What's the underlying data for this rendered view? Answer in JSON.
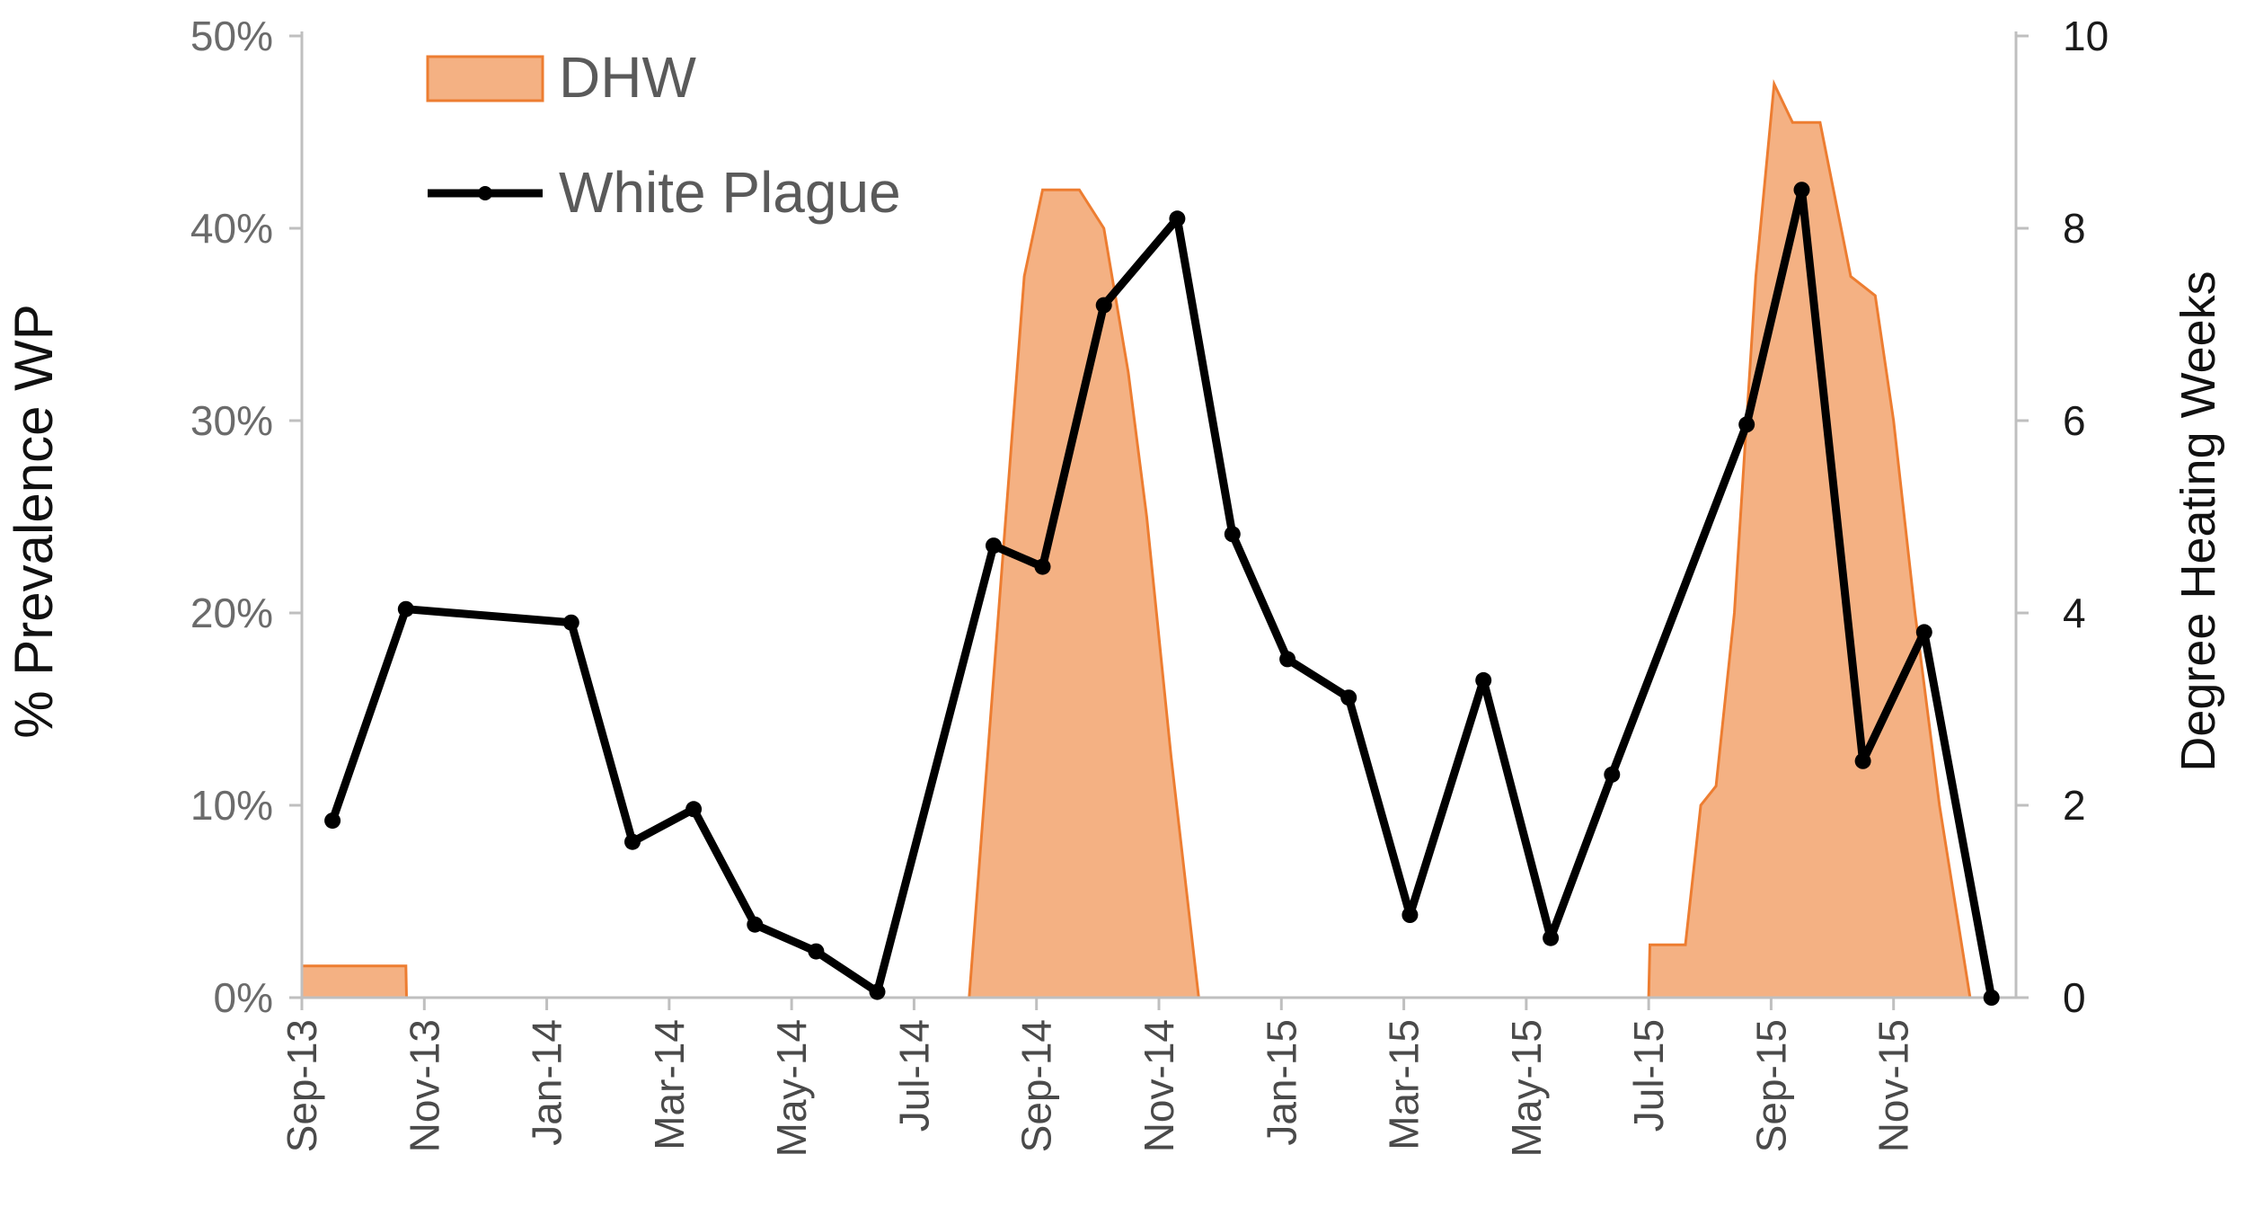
{
  "chart_data": {
    "type": "line",
    "title": "",
    "ylabel": "% Prevalence WP",
    "y2label": "Degree Heating Weeks",
    "xlabel": "",
    "ylim": [
      0,
      50
    ],
    "y2lim": [
      0,
      10
    ],
    "y_ticks": [
      "0%",
      "10%",
      "20%",
      "30%",
      "40%",
      "50%"
    ],
    "y_tick_values": [
      0,
      10,
      20,
      30,
      40,
      50
    ],
    "y2_ticks": [
      "0",
      "2",
      "4",
      "6",
      "8",
      "10"
    ],
    "y2_tick_values": [
      0,
      2,
      4,
      6,
      8,
      10
    ],
    "x_ticks": [
      "Sep-13",
      "Nov-13",
      "Jan-14",
      "Mar-14",
      "May-14",
      "Jul-14",
      "Sep-14",
      "Nov-14",
      "Jan-15",
      "Mar-15",
      "May-15",
      "Jul-15",
      "Sep-15",
      "Nov-15"
    ],
    "x_tick_values": [
      0,
      2,
      4,
      6,
      8,
      10,
      12,
      14,
      16,
      18,
      20,
      22,
      24,
      26
    ],
    "xlim": [
      0,
      28
    ],
    "grid": false,
    "legend": {
      "position": "top-left",
      "entries": [
        "DHW",
        "White Plague"
      ]
    },
    "colors": {
      "dhw_fill": "#f4b183",
      "dhw_edge": "#ed7d31",
      "white_plague": "#000000",
      "axis": "#bfbfbf"
    },
    "series": [
      {
        "name": "White Plague",
        "axis": "left",
        "type": "line",
        "x": [
          0.5,
          1.7,
          4.4,
          5.4,
          6.4,
          7.4,
          8.4,
          9.4,
          11.3,
          12.1,
          13.1,
          14.3,
          15.2,
          16.1,
          17.1,
          18.1,
          19.3,
          20.4,
          21.4,
          23.6,
          24.5,
          25.5,
          26.5,
          27.6
        ],
        "y": [
          9.2,
          20.2,
          19.5,
          8.1,
          9.8,
          3.8,
          2.4,
          0.3,
          23.5,
          22.4,
          36,
          40.5,
          24.1,
          17.6,
          15.6,
          4.3,
          16.5,
          3.1,
          11.6,
          29.8,
          42,
          12.3,
          19,
          0
        ]
      },
      {
        "name": "DHW",
        "axis": "right",
        "type": "area",
        "x": [
          0,
          1.7,
          1.71,
          10.9,
          11.2,
          11.5,
          11.8,
          12.1,
          12.4,
          12.7,
          13.1,
          13.5,
          13.8,
          14.2,
          14.65,
          22.0,
          22.02,
          22.6,
          22.85,
          23.1,
          23.4,
          23.75,
          24.05,
          24.35,
          24.6,
          24.8,
          25.3,
          25.7,
          26.0,
          26.35,
          26.75,
          27.25,
          27.35
        ],
        "y": [
          0.33,
          0.33,
          0,
          0,
          2.5,
          5,
          7.5,
          8.4,
          8.4,
          8.4,
          8,
          6.5,
          5,
          2.5,
          0,
          0,
          0.55,
          0.55,
          2,
          2.2,
          4,
          7.5,
          9.5,
          9.1,
          9.1,
          9.1,
          7.5,
          7.3,
          6,
          4,
          2,
          0,
          0
        ]
      }
    ]
  }
}
